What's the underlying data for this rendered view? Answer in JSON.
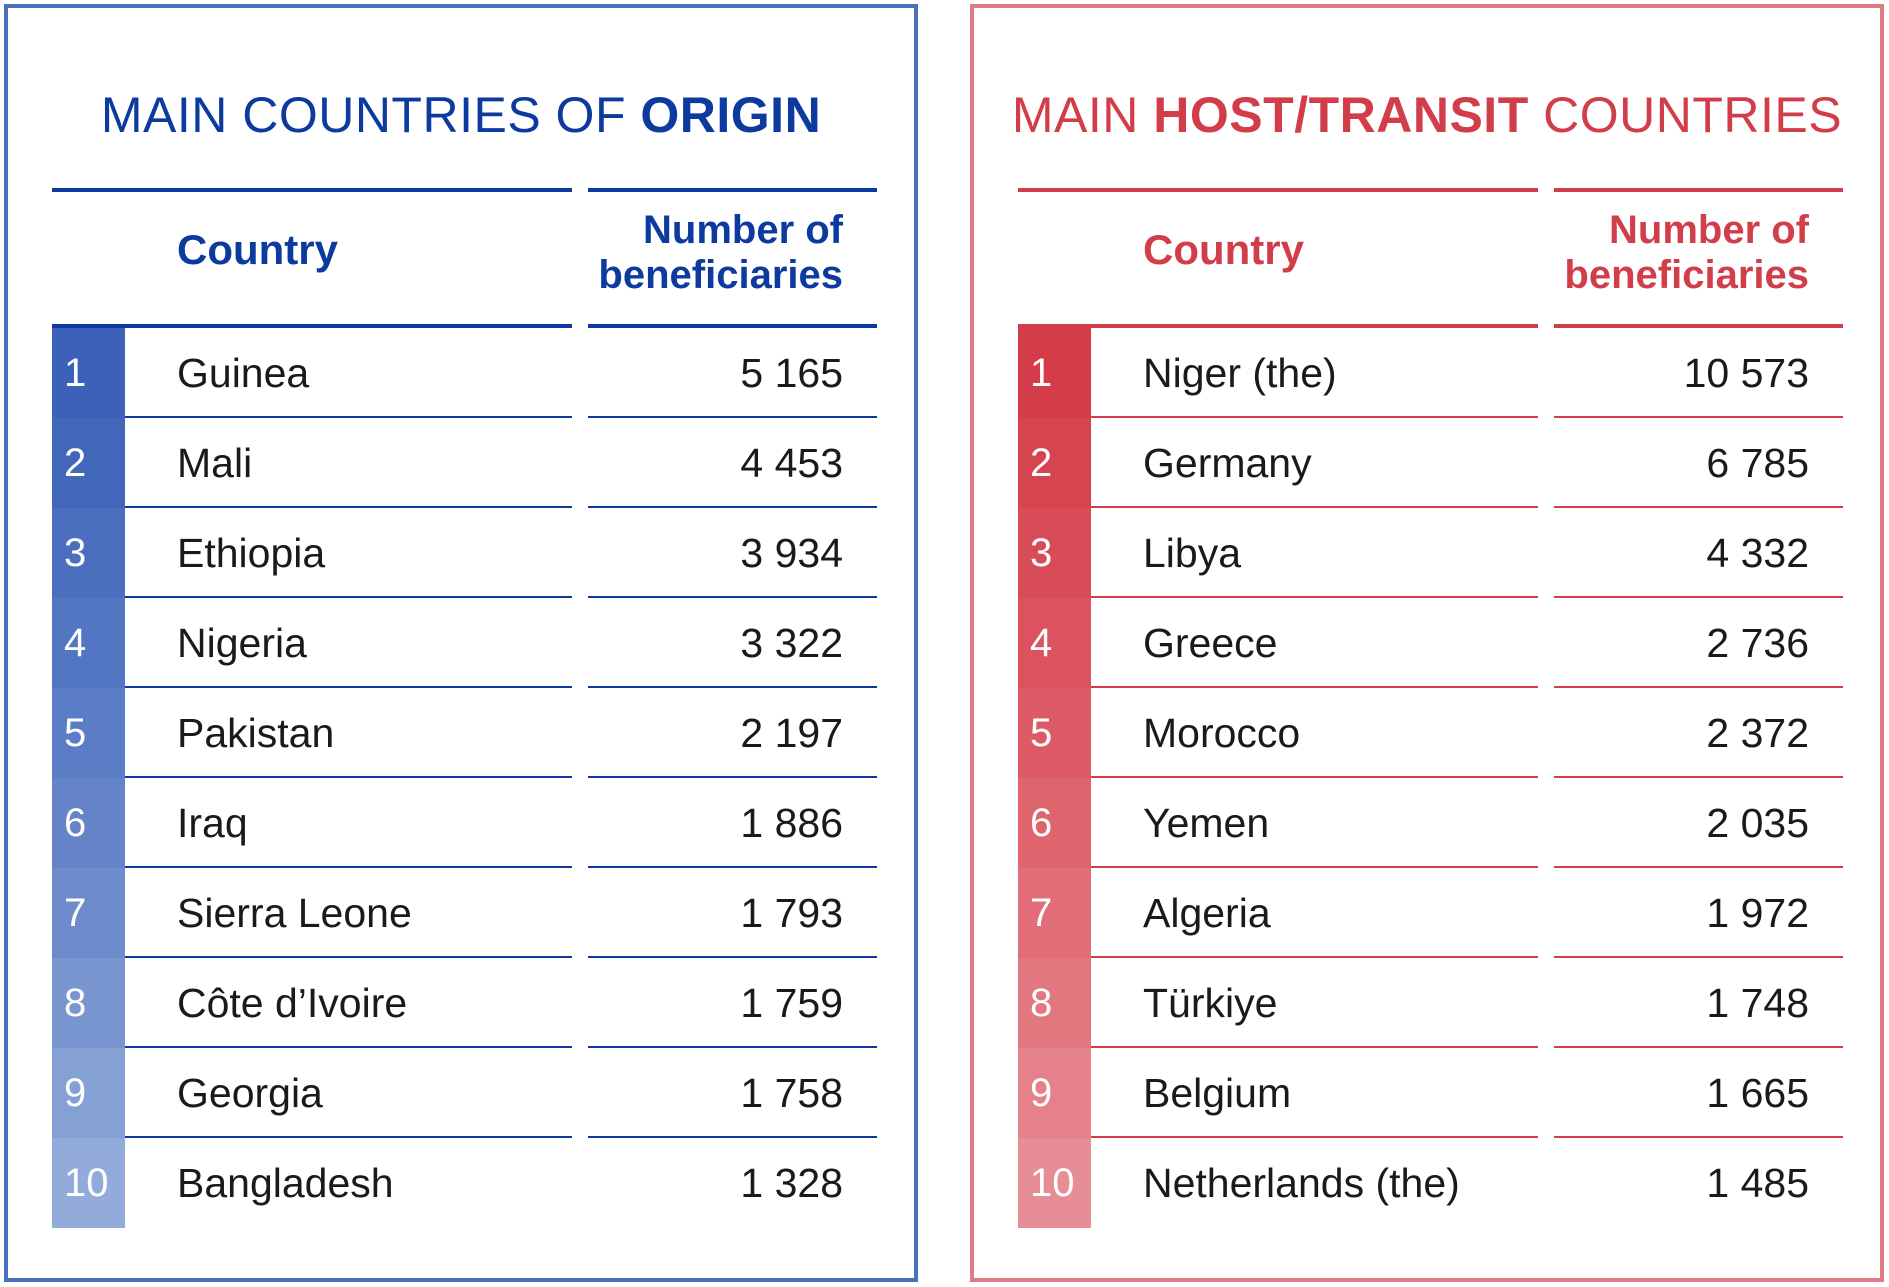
{
  "origin": {
    "title_prefix": "MAIN COUNTRIES OF ",
    "title_bold": "ORIGIN",
    "title_suffix": "",
    "col_country": "Country",
    "col_number_line1": "Number of",
    "col_number_line2": "beneficiaries",
    "rank_colors": [
      "#3b62b8",
      "#4267ba",
      "#4b6ebe",
      "#5376c2",
      "#5b7dc5",
      "#6584c8",
      "#6e8ccc",
      "#7a96d1",
      "#85a0d5",
      "#93abda"
    ],
    "rows": [
      {
        "rank": "1",
        "country": "Guinea",
        "value": "5 165"
      },
      {
        "rank": "2",
        "country": "Mali",
        "value": "4 453"
      },
      {
        "rank": "3",
        "country": "Ethiopia",
        "value": "3 934"
      },
      {
        "rank": "4",
        "country": "Nigeria",
        "value": "3 322"
      },
      {
        "rank": "5",
        "country": "Pakistan",
        "value": "2 197"
      },
      {
        "rank": "6",
        "country": "Iraq",
        "value": "1 886"
      },
      {
        "rank": "7",
        "country": "Sierra Leone",
        "value": "1 793"
      },
      {
        "rank": "8",
        "country": "Côte d’Ivoire",
        "value": "1 759"
      },
      {
        "rank": "9",
        "country": "Georgia",
        "value": "1 758"
      },
      {
        "rank": "10",
        "country": "Bangladesh",
        "value": "1 328"
      }
    ]
  },
  "host": {
    "title_prefix": "MAIN ",
    "title_bold": "HOST/TRANSIT",
    "title_suffix": " COUNTRIES",
    "col_country": "Country",
    "col_number_line1": "Number of",
    "col_number_line2": "beneficiaries",
    "rank_colors": [
      "#d33c48",
      "#d6444f",
      "#d84c57",
      "#da535e",
      "#dc5b66",
      "#de646e",
      "#e06d77",
      "#e27780",
      "#e4818a",
      "#e78d95"
    ],
    "rows": [
      {
        "rank": "1",
        "country": "Niger (the)",
        "value": "10 573"
      },
      {
        "rank": "2",
        "country": "Germany",
        "value": "6 785"
      },
      {
        "rank": "3",
        "country": "Libya",
        "value": "4 332"
      },
      {
        "rank": "4",
        "country": "Greece",
        "value": "2 736"
      },
      {
        "rank": "5",
        "country": "Morocco",
        "value": "2 372"
      },
      {
        "rank": "6",
        "country": "Yemen",
        "value": "2 035"
      },
      {
        "rank": "7",
        "country": "Algeria",
        "value": "1 972"
      },
      {
        "rank": "8",
        "country": "Türkiye",
        "value": "1 748"
      },
      {
        "rank": "9",
        "country": "Belgium",
        "value": "1 665"
      },
      {
        "rank": "10",
        "country": "Netherlands (the)",
        "value": "1 485"
      }
    ]
  }
}
